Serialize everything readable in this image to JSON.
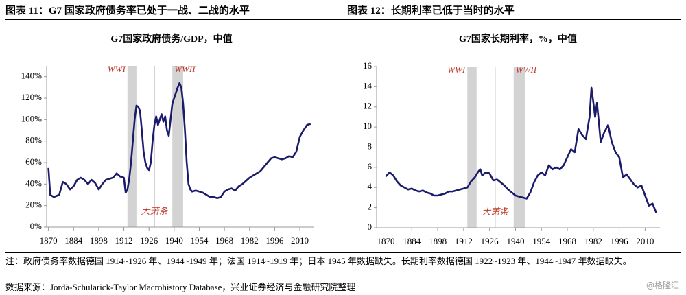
{
  "header": {
    "left": "图表 11：G7 国家政府债务率已处于一战、二战的水平",
    "right": "图表 12：长期利率已低于当时的水平"
  },
  "chart_data": [
    {
      "type": "line",
      "title": "G7国家政府债务/GDP，中值",
      "xlim": [
        1869,
        2018
      ],
      "xticks": [
        1870,
        1884,
        1898,
        1912,
        1926,
        1940,
        1954,
        1968,
        1982,
        1996,
        2010
      ],
      "ylim": [
        0,
        150
      ],
      "yticks": [
        {
          "value": 0,
          "label": "0%"
        },
        {
          "value": 20,
          "label": "20%"
        },
        {
          "value": 40,
          "label": "40%"
        },
        {
          "value": 60,
          "label": "60%"
        },
        {
          "value": 80,
          "label": "80%"
        },
        {
          "value": 100,
          "label": "100%"
        },
        {
          "value": 120,
          "label": "120%"
        },
        {
          "value": 140,
          "label": "140%"
        }
      ],
      "periods": [
        {
          "label": "WWI",
          "xlim": [
            1914,
            1919
          ]
        },
        {
          "label": "WWII",
          "xlim": [
            1939,
            1945
          ]
        }
      ],
      "annotations": [
        {
          "label": "大萧条",
          "x": 1929
        }
      ],
      "x": [
        1870,
        1871,
        1873,
        1876,
        1878,
        1880,
        1882,
        1884,
        1886,
        1888,
        1890,
        1892,
        1894,
        1896,
        1898,
        1900,
        1902,
        1904,
        1906,
        1908,
        1910,
        1912,
        1913,
        1914,
        1915,
        1916,
        1917,
        1918,
        1919,
        1920,
        1921,
        1922,
        1923,
        1924,
        1925,
        1926,
        1927,
        1928,
        1929,
        1930,
        1931,
        1932,
        1933,
        1934,
        1935,
        1936,
        1937,
        1938,
        1939,
        1940,
        1941,
        1942,
        1943,
        1944,
        1945,
        1946,
        1947,
        1948,
        1949,
        1950,
        1952,
        1954,
        1956,
        1958,
        1960,
        1962,
        1964,
        1966,
        1968,
        1970,
        1972,
        1974,
        1976,
        1978,
        1980,
        1982,
        1984,
        1986,
        1988,
        1990,
        1992,
        1994,
        1996,
        1998,
        2000,
        2002,
        2004,
        2006,
        2008,
        2010,
        2012,
        2014,
        2016
      ],
      "series": [
        {
          "color": "#1b1b6b",
          "values": [
            55,
            30,
            28,
            30,
            42,
            40,
            35,
            38,
            44,
            46,
            44,
            40,
            44,
            41,
            35,
            40,
            44,
            45,
            46,
            50,
            47,
            46,
            32,
            35,
            45,
            60,
            80,
            100,
            113,
            112,
            108,
            90,
            70,
            60,
            55,
            53,
            60,
            80,
            95,
            103,
            95,
            100,
            105,
            98,
            103,
            90,
            85,
            100,
            115,
            120,
            125,
            130,
            134,
            130,
            115,
            90,
            60,
            40,
            35,
            33,
            34,
            33,
            32,
            30,
            28,
            28,
            27,
            28,
            33,
            35,
            36,
            34,
            38,
            40,
            43,
            46,
            48,
            50,
            52,
            56,
            60,
            64,
            65,
            64,
            63,
            64,
            66,
            65,
            70,
            84,
            90,
            95,
            96
          ]
        }
      ]
    },
    {
      "type": "line",
      "title": "G7国家长期利率，%，中值",
      "xlim": [
        1865,
        2018
      ],
      "xticks": [
        1870,
        1884,
        1898,
        1912,
        1926,
        1940,
        1954,
        1968,
        1982,
        1996,
        2010
      ],
      "ylim": [
        0,
        16
      ],
      "yticks": [
        0,
        2,
        4,
        6,
        8,
        10,
        12,
        14,
        16
      ],
      "periods": [
        {
          "label": "WWI",
          "xlim": [
            1914,
            1919
          ]
        },
        {
          "label": "WWII",
          "xlim": [
            1939,
            1945
          ]
        }
      ],
      "annotations": [
        {
          "label": "大萧条",
          "x": 1929
        }
      ],
      "x": [
        1870,
        1872,
        1874,
        1876,
        1878,
        1880,
        1882,
        1884,
        1886,
        1888,
        1890,
        1892,
        1894,
        1896,
        1898,
        1900,
        1902,
        1904,
        1906,
        1908,
        1910,
        1912,
        1914,
        1916,
        1918,
        1920,
        1921,
        1922,
        1924,
        1926,
        1928,
        1930,
        1932,
        1934,
        1936,
        1938,
        1940,
        1942,
        1944,
        1946,
        1948,
        1950,
        1952,
        1954,
        1956,
        1958,
        1960,
        1962,
        1964,
        1966,
        1968,
        1970,
        1972,
        1974,
        1976,
        1978,
        1980,
        1981,
        1982,
        1983,
        1984,
        1985,
        1986,
        1988,
        1990,
        1992,
        1994,
        1996,
        1998,
        2000,
        2002,
        2004,
        2006,
        2008,
        2010,
        2012,
        2014,
        2016
      ],
      "series": [
        {
          "color": "#1b1b6b",
          "values": [
            5.1,
            5.5,
            5.2,
            4.6,
            4.2,
            4.0,
            3.8,
            3.9,
            3.7,
            3.6,
            3.7,
            3.5,
            3.4,
            3.2,
            3.2,
            3.3,
            3.4,
            3.6,
            3.6,
            3.7,
            3.8,
            3.9,
            4.0,
            4.6,
            5.0,
            5.6,
            5.8,
            5.2,
            5.5,
            5.4,
            4.7,
            4.8,
            4.5,
            4.2,
            3.8,
            3.5,
            3.2,
            3.1,
            3.0,
            2.9,
            3.5,
            4.5,
            5.2,
            5.5,
            5.2,
            6.2,
            5.8,
            6.0,
            5.8,
            6.2,
            7.0,
            7.8,
            7.5,
            9.8,
            9.2,
            8.8,
            11.0,
            13.9,
            12.5,
            11.0,
            12.4,
            10.5,
            8.5,
            9.5,
            10.2,
            8.5,
            7.5,
            7.0,
            5.0,
            5.3,
            4.8,
            4.3,
            4.0,
            4.2,
            3.2,
            2.2,
            2.4,
            1.5
          ]
        }
      ]
    }
  ],
  "notes": "注：政府债务率数据德国 1914~1926 年、1944~1949 年；法国 1914~1919 年；日本 1945 年数据缺失。长期利率数据德国 1922~1923 年、1944~1947 年数据缺失。",
  "source": "数据来源：Jordà-Schularick-Taylor Macrohistory Database，兴业证券经济与金融研究院整理",
  "watermark": "@格隆汇"
}
